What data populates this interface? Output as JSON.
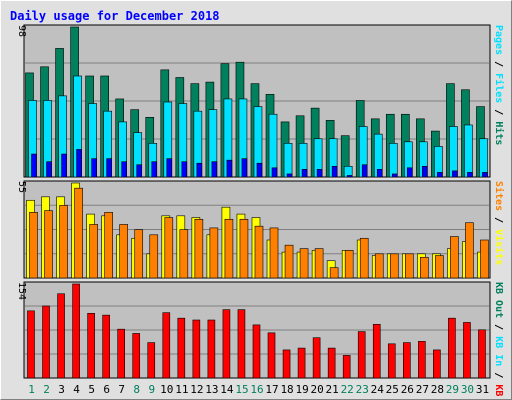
{
  "colors": {
    "background": "#E0E0E0",
    "plot_bg": "#C0C0C0",
    "title": "#0000FF",
    "hits": "#00805C",
    "files": "#00E0FF",
    "pages": "#0000FF",
    "visits": "#FFFF00",
    "sites": "#FF8000",
    "kb": "#FF0000",
    "day_weekday": "#000000",
    "day_weekend": "#00805C"
  },
  "chart_data": [
    {
      "type": "bar",
      "title": "Daily usage for December 2018",
      "categories": [
        "1",
        "2",
        "3",
        "4",
        "5",
        "6",
        "7",
        "8",
        "9",
        "10",
        "11",
        "12",
        "13",
        "14",
        "15",
        "16",
        "17",
        "18",
        "19",
        "20",
        "21",
        "22",
        "23",
        "24",
        "25",
        "26",
        "27",
        "28",
        "29",
        "30",
        "31"
      ],
      "weekend_days": [
        "1",
        "2",
        "8",
        "9",
        "15",
        "16",
        "22",
        "23",
        "29",
        "30"
      ],
      "ymax_label": "98",
      "ylim": [
        0,
        98
      ],
      "legend": [
        {
          "text": "Hits",
          "color": "#00805C"
        },
        {
          "text": "Files",
          "color": "#00E0FF"
        },
        {
          "text": "Pages",
          "color": "#00E0FF"
        }
      ],
      "series": [
        {
          "name": "Hits",
          "values": [
            68,
            72,
            84,
            98,
            66,
            66,
            51,
            44,
            39,
            70,
            65,
            61,
            62,
            74,
            75,
            61,
            54,
            36,
            40,
            45,
            37,
            27,
            50,
            38,
            41,
            41,
            38,
            30,
            61,
            57,
            46
          ]
        },
        {
          "name": "Files",
          "values": [
            50,
            50,
            53,
            66,
            48,
            43,
            36,
            29,
            22,
            49,
            48,
            43,
            44,
            51,
            51,
            46,
            41,
            22,
            22,
            25,
            25,
            7,
            33,
            28,
            22,
            23,
            23,
            20,
            33,
            34,
            25
          ]
        },
        {
          "name": "Pages",
          "values": [
            15,
            10,
            15,
            18,
            12,
            12,
            10,
            8,
            10,
            12,
            10,
            9,
            10,
            11,
            12,
            9,
            6,
            2,
            5,
            5,
            7,
            1,
            8,
            5,
            2,
            6,
            7,
            3,
            4,
            3,
            3
          ]
        }
      ]
    },
    {
      "type": "bar",
      "ymax_label": "55",
      "ylim": [
        0,
        55
      ],
      "legend": [
        {
          "text": "Visits",
          "color": "#FFFF00"
        },
        {
          "text": "Sites",
          "color": "#FF8000"
        }
      ],
      "series": [
        {
          "name": "Visits",
          "values": [
            45,
            47,
            47,
            55,
            37,
            36,
            25,
            23,
            14,
            36,
            36,
            35,
            25,
            41,
            37,
            35,
            22,
            15,
            15,
            16,
            10,
            16,
            22,
            13,
            14,
            14,
            14,
            14,
            17,
            21,
            15
          ]
        },
        {
          "name": "Sites",
          "values": [
            38,
            39,
            42,
            52,
            31,
            38,
            31,
            28,
            25,
            35,
            28,
            34,
            29,
            34,
            34,
            30,
            29,
            19,
            17,
            17,
            6,
            16,
            23,
            14,
            14,
            14,
            12,
            13,
            24,
            32,
            22
          ]
        }
      ]
    },
    {
      "type": "bar",
      "ymax_label": "154",
      "ylim": [
        0,
        154
      ],
      "legend": [
        {
          "text": "KB F",
          "color": "#FF0000"
        },
        {
          "text": "KB In",
          "color": "#00E0FF"
        },
        {
          "text": "KB Out",
          "color": "#00805C"
        }
      ],
      "series": [
        {
          "name": "KB F",
          "values": [
            110,
            118,
            138,
            154,
            106,
            103,
            80,
            73,
            58,
            107,
            98,
            95,
            95,
            112,
            112,
            87,
            74,
            46,
            49,
            66,
            49,
            37,
            76,
            88,
            56,
            58,
            60,
            46,
            98,
            91,
            79
          ]
        }
      ]
    }
  ]
}
